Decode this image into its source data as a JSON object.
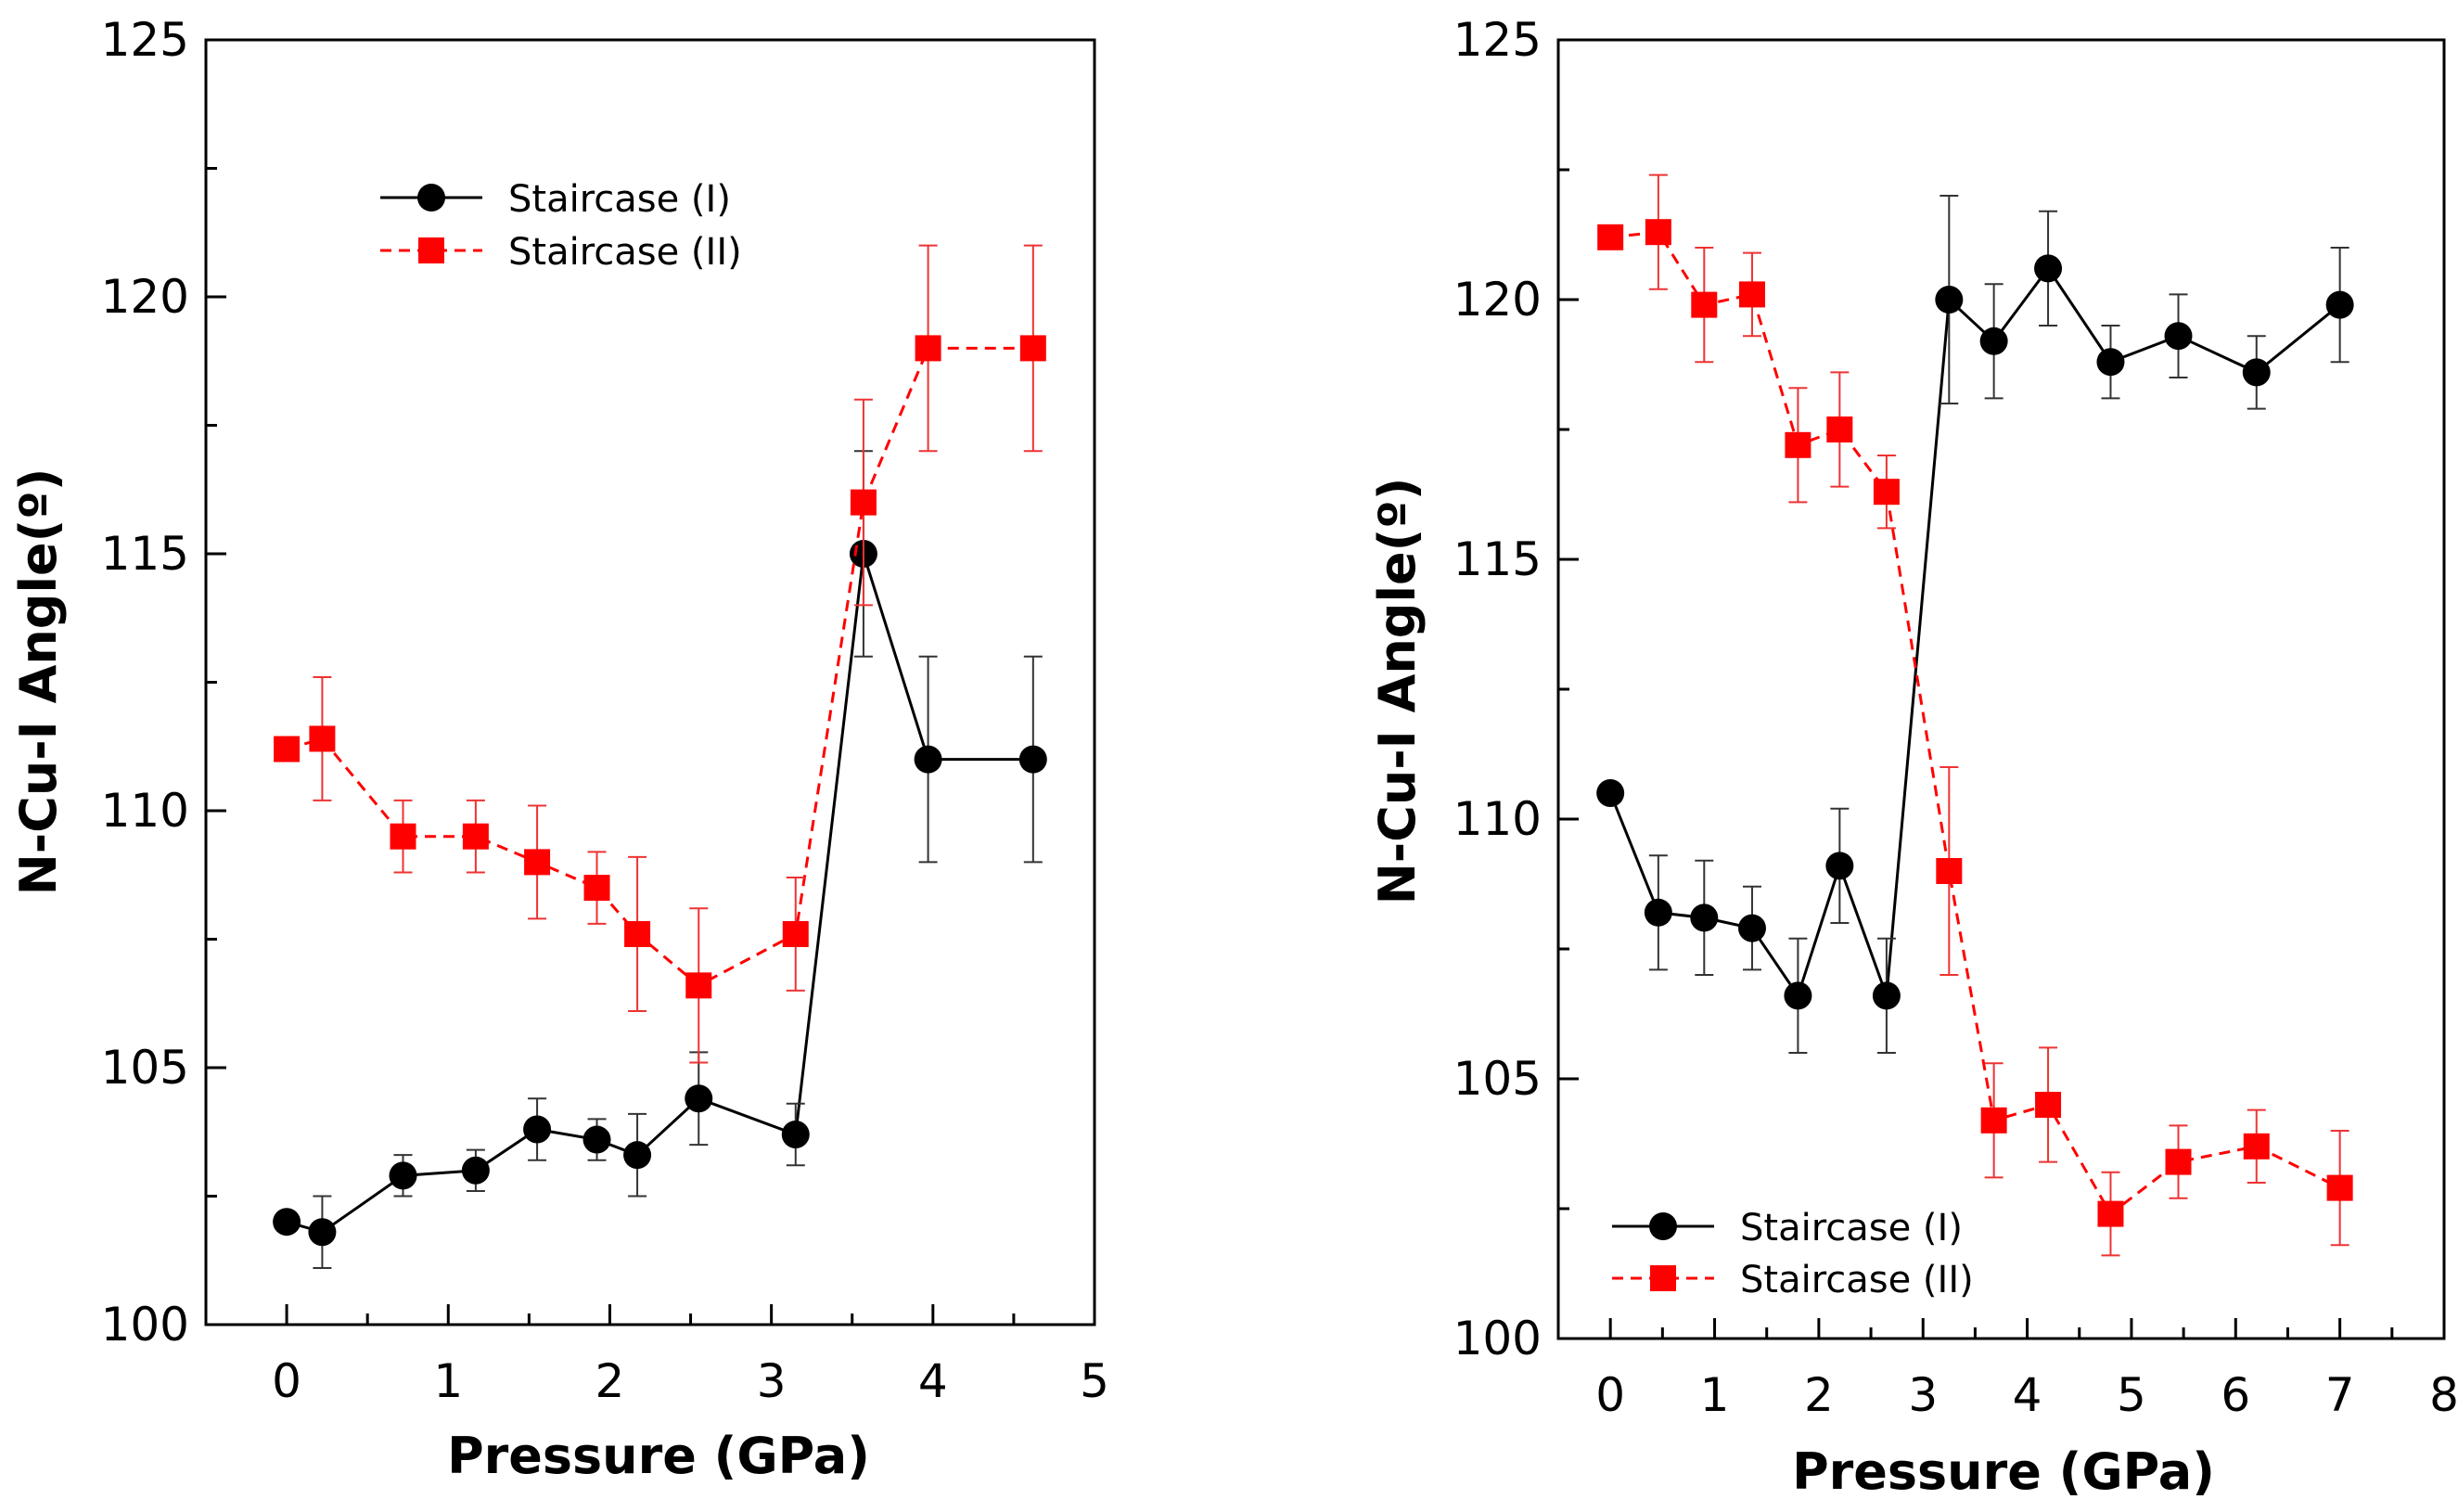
{
  "chart_data": [
    {
      "type": "line",
      "title": "",
      "xlabel": "Pressure (GPa)",
      "ylabel": "N-Cu-I Angle(º)",
      "xlim": [
        -0.5,
        5
      ],
      "ylim": [
        100,
        125
      ],
      "xticks": [
        "0",
        "1",
        "2",
        "3",
        "4",
        "5"
      ],
      "yticks": [
        "100",
        "105",
        "110",
        "115",
        "120",
        "125"
      ],
      "grid": false,
      "legend_position": "top-left",
      "series": [
        {
          "name": "Staircase (I)",
          "color": "#000000",
          "marker": "circle",
          "linestyle": "solid",
          "x": [
            0,
            0.22,
            0.72,
            1.17,
            1.55,
            1.92,
            2.17,
            2.55,
            3.15,
            3.57,
            3.97,
            4.62
          ],
          "y": [
            102.0,
            101.8,
            102.9,
            103.0,
            103.8,
            103.6,
            103.3,
            104.4,
            103.7,
            115.0,
            111.0,
            111.0
          ],
          "err": [
            0,
            0.7,
            0.4,
            0.4,
            0.6,
            0.4,
            0.8,
            0.9,
            0.6,
            2.0,
            2.0,
            2.0
          ]
        },
        {
          "name": "Staircase (II)",
          "color": "#ff0000",
          "marker": "square",
          "linestyle": "dashed",
          "x": [
            0,
            0.22,
            0.72,
            1.17,
            1.55,
            1.92,
            2.17,
            2.55,
            3.15,
            3.57,
            3.97,
            4.62
          ],
          "y": [
            111.2,
            111.4,
            109.5,
            109.5,
            109.0,
            108.5,
            107.6,
            106.6,
            107.6,
            116.0,
            119.0,
            119.0
          ],
          "err": [
            0,
            1.2,
            0.7,
            0.7,
            1.1,
            0.7,
            1.5,
            1.5,
            1.1,
            2.0,
            2.0,
            2.0
          ]
        }
      ]
    },
    {
      "type": "line",
      "title": "",
      "xlabel": "Pressure (GPa)",
      "ylabel": "N-Cu-I Angle(º)",
      "xlim": [
        -0.5,
        8
      ],
      "ylim": [
        100,
        125
      ],
      "xticks": [
        "0",
        "1",
        "2",
        "3",
        "4",
        "5",
        "6",
        "7",
        "8"
      ],
      "yticks": [
        "100",
        "105",
        "110",
        "115",
        "120",
        "125"
      ],
      "grid": false,
      "legend_position": "bottom-left",
      "series": [
        {
          "name": "Staircase (I)",
          "color": "#000000",
          "marker": "circle",
          "linestyle": "solid",
          "x": [
            0,
            0.46,
            0.9,
            1.36,
            1.8,
            2.2,
            2.65,
            3.25,
            3.68,
            4.2,
            4.8,
            5.45,
            6.2,
            7.0
          ],
          "y": [
            110.5,
            108.2,
            108.1,
            107.9,
            106.6,
            109.1,
            106.6,
            120.0,
            119.2,
            120.6,
            118.8,
            119.3,
            118.6,
            119.9
          ],
          "err": [
            0,
            1.1,
            1.1,
            0.8,
            1.1,
            1.1,
            1.1,
            2.0,
            1.1,
            1.1,
            0.7,
            0.8,
            0.7,
            1.1
          ]
        },
        {
          "name": "Staircase (II)",
          "color": "#ff0000",
          "marker": "square",
          "linestyle": "dashed",
          "x": [
            0,
            0.46,
            0.9,
            1.36,
            1.8,
            2.2,
            2.65,
            3.25,
            3.68,
            4.2,
            4.8,
            5.45,
            6.2,
            7.0
          ],
          "y": [
            121.2,
            121.3,
            119.9,
            120.1,
            117.2,
            117.5,
            116.3,
            109.0,
            104.2,
            104.5,
            102.4,
            103.4,
            103.7,
            102.9
          ],
          "err": [
            0,
            1.1,
            1.1,
            0.8,
            1.1,
            1.1,
            0.7,
            2.0,
            1.1,
            1.1,
            0.8,
            0.7,
            0.7,
            1.1
          ]
        }
      ]
    }
  ]
}
